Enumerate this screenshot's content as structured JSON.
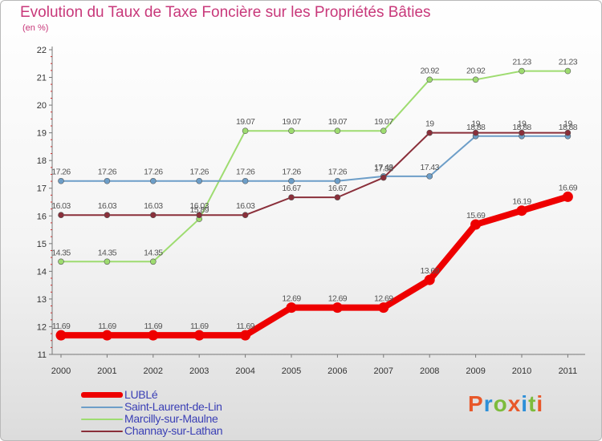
{
  "title": "Evolution du Taux de Taxe Foncière sur les Propriétés Bâties",
  "unit": "(en %)",
  "logo": {
    "text": "Proxiti",
    "colors": [
      "#e8582a",
      "#2d8fd8",
      "#7dbb3c",
      "#e8582a",
      "#2d8fd8",
      "#7dbb3c",
      "#e8582a"
    ]
  },
  "chart_data": {
    "type": "line",
    "title": "Evolution du Taux de Taxe Foncière sur les Propriétés Bâties",
    "ylabel": "(en %)",
    "ylim": [
      11,
      22
    ],
    "yticks": [
      11,
      12,
      13,
      14,
      15,
      16,
      17,
      18,
      19,
      20,
      21,
      22
    ],
    "x": [
      "2000",
      "2001",
      "2002",
      "2003",
      "2004",
      "2005",
      "2006",
      "2007",
      "2008",
      "2009",
      "2010",
      "2011"
    ],
    "grid": false,
    "legend_position": "bottom-left",
    "series": [
      {
        "name": "LUBLé",
        "color": "#ee0000",
        "values": [
          11.69,
          11.69,
          11.69,
          11.69,
          11.69,
          12.69,
          12.69,
          12.69,
          13.69,
          15.69,
          16.19,
          16.69
        ],
        "labels": [
          "11.69",
          "11.69",
          "11.69",
          "11.69",
          "11.69",
          "12.69",
          "12.69",
          "12.69",
          "13.69",
          "15.69",
          "16.19",
          "16.69"
        ]
      },
      {
        "name": "Saint-Laurent-de-Lin",
        "color": "#6d9ec8",
        "values": [
          17.26,
          17.26,
          17.26,
          17.26,
          17.26,
          17.26,
          17.26,
          17.43,
          17.43,
          18.88,
          18.88,
          18.88
        ],
        "labels": [
          "17.26",
          "17.26",
          "17.26",
          "17.26",
          "17.26",
          "17.26",
          "17.26",
          "17.43",
          "17.43",
          "18.88",
          "18.88",
          "18.88"
        ]
      },
      {
        "name": "Marcilly-sur-Maulne",
        "color": "#9edc70",
        "values": [
          14.35,
          14.35,
          14.35,
          15.89,
          19.07,
          19.07,
          19.07,
          19.07,
          20.92,
          20.92,
          21.23,
          21.23
        ],
        "labels": [
          "14.35",
          "14.35",
          "14.35",
          "15.89",
          "19.07",
          "19.07",
          "19.07",
          "19.07",
          "20.92",
          "20.92",
          "21.23",
          "21.23"
        ]
      },
      {
        "name": "Channay-sur-Lathan",
        "color": "#8a2f3a",
        "values": [
          16.03,
          16.03,
          16.03,
          16.03,
          16.03,
          16.67,
          16.67,
          17.38,
          19,
          19,
          19,
          19
        ],
        "labels": [
          "16.03",
          "16.03",
          "16.03",
          "16.03",
          "16.03",
          "16.67",
          "16.67",
          "17.38",
          "19",
          "19",
          "19",
          "19"
        ]
      }
    ]
  }
}
